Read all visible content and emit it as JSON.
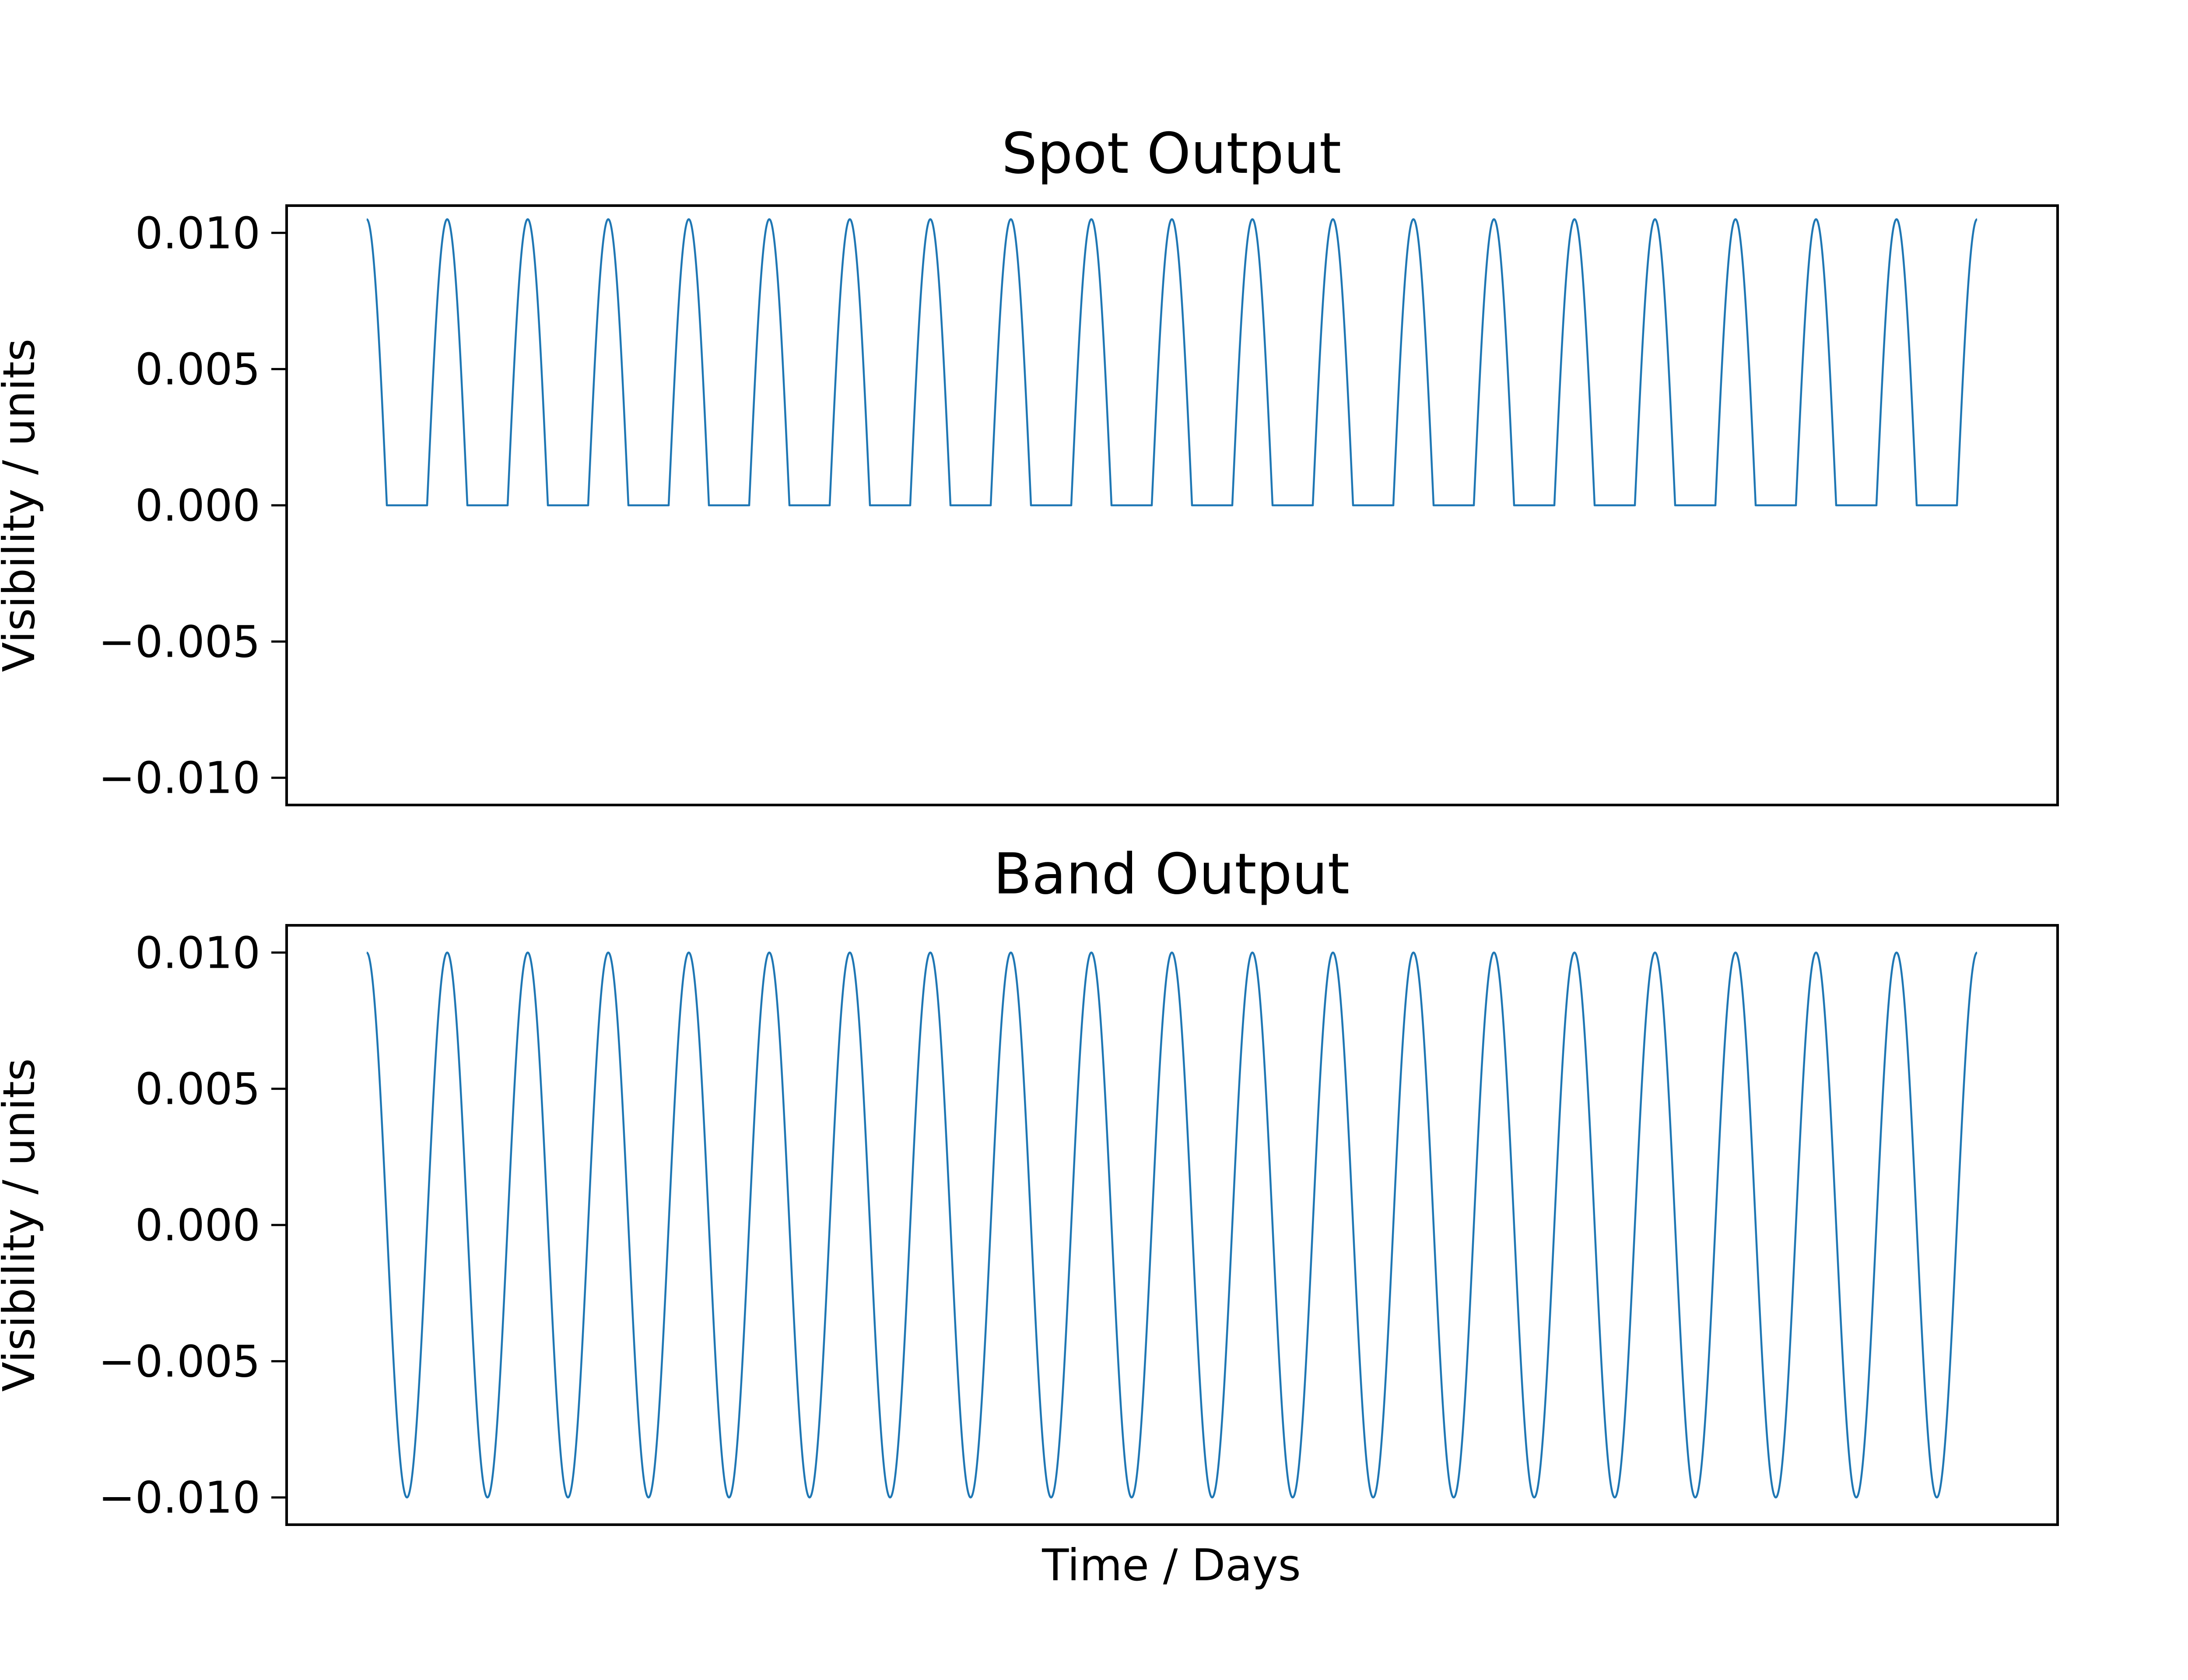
{
  "chart_data": [
    {
      "type": "line",
      "title": "Spot Output",
      "xlabel": "",
      "ylabel": "Visibility / units",
      "ylim": [
        -0.011,
        0.011
      ],
      "yticks": [
        0.01,
        0.005,
        0.0,
        -0.005,
        -0.01
      ],
      "ytick_labels": [
        "0.010",
        "0.005",
        "0.000",
        "−0.005",
        "−0.010"
      ],
      "xticks": [],
      "x": [
        0,
        1,
        2,
        3,
        4,
        5,
        6,
        7,
        8,
        9,
        10,
        11,
        12,
        13,
        14,
        15,
        16,
        17,
        18,
        19,
        20
      ],
      "series": [
        {
          "color": "#1f77b4",
          "peak": 0.0105,
          "cycles": 20,
          "floor": 0.0,
          "y_at_cycle_start": [
            0.0105,
            0.0105,
            0.0105,
            0.0105,
            0.0105,
            0.0105,
            0.0105,
            0.0105,
            0.0105,
            0.0105,
            0.0105,
            0.0105,
            0.0105,
            0.0105,
            0.0105,
            0.0105,
            0.0105,
            0.0105,
            0.0105,
            0.0105,
            0.0105
          ],
          "y_min": 0.0
        }
      ],
      "grid": false,
      "legend": "none"
    },
    {
      "type": "line",
      "title": "Band Output",
      "xlabel": "Time / Days",
      "ylabel": "Visibility / units",
      "ylim": [
        -0.011,
        0.011
      ],
      "yticks": [
        0.01,
        0.005,
        0.0,
        -0.005,
        -0.01
      ],
      "ytick_labels": [
        "0.010",
        "0.005",
        "0.000",
        "−0.005",
        "−0.010"
      ],
      "xticks": [],
      "x": [
        0,
        1,
        2,
        3,
        4,
        5,
        6,
        7,
        8,
        9,
        10,
        11,
        12,
        13,
        14,
        15,
        16,
        17,
        18,
        19,
        20
      ],
      "series": [
        {
          "color": "#1f77b4",
          "amplitude": 0.01,
          "cycles": 20,
          "y_at_cycle_start": [
            0.01,
            0.01,
            0.01,
            0.01,
            0.01,
            0.01,
            0.01,
            0.01,
            0.01,
            0.01,
            0.01,
            0.01,
            0.01,
            0.01,
            0.01,
            0.01,
            0.01,
            0.01,
            0.01,
            0.01,
            0.01
          ],
          "y_min": -0.01
        }
      ],
      "grid": false,
      "legend": "none"
    }
  ]
}
